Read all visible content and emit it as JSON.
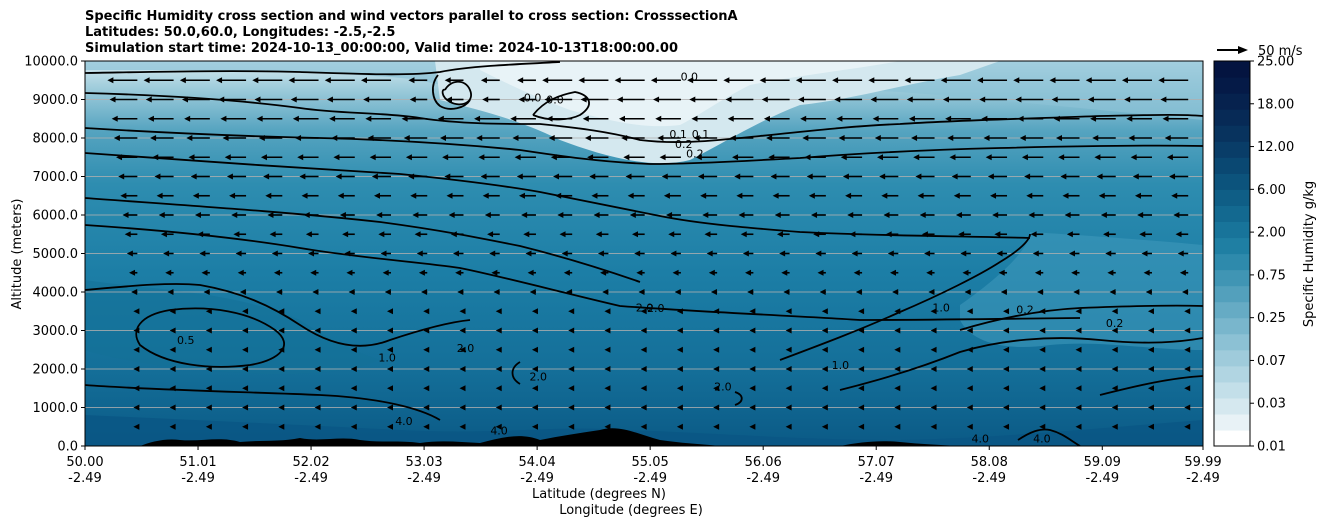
{
  "titles": [
    "Specific Humidity cross section and wind vectors parallel to cross section: CrosssectionA",
    "Latitudes: 50.0,60.0, Longitudes: -2.5,-2.5",
    "Simulation start time: 2024-10-13_00:00:00, Valid time: 2024-10-13T18:00:00.00"
  ],
  "chart_data": {
    "type": "heatmap",
    "title": "Specific Humidity cross section and wind vectors parallel to cross section: CrosssectionA",
    "xlabel_lat": "Latitude (degrees N)",
    "xlabel_lon": "Longitude (degrees E)",
    "ylabel": "Altitude (meters)",
    "x_ticks_lat": [
      "50.00",
      "51.01",
      "52.02",
      "53.03",
      "54.04",
      "55.05",
      "56.06",
      "57.07",
      "58.08",
      "59.09",
      "59.99"
    ],
    "x_ticks_lon": [
      "-2.49",
      "-2.49",
      "-2.49",
      "-2.49",
      "-2.49",
      "-2.49",
      "-2.49",
      "-2.49",
      "-2.49",
      "-2.49",
      "-2.49"
    ],
    "x_tick_values": [
      50.0,
      51.01,
      52.02,
      53.03,
      54.04,
      55.05,
      56.06,
      57.07,
      58.08,
      59.09,
      59.99
    ],
    "xlim": [
      50.0,
      59.99
    ],
    "y_ticks": [
      "0.0",
      "1000.0",
      "2000.0",
      "3000.0",
      "4000.0",
      "5000.0",
      "6000.0",
      "7000.0",
      "8000.0",
      "9000.0",
      "10000.0"
    ],
    "y_tick_values": [
      0,
      1000,
      2000,
      3000,
      4000,
      5000,
      6000,
      7000,
      8000,
      9000,
      10000
    ],
    "ylim": [
      0,
      10000
    ],
    "grid": "horizontal",
    "colorbar": {
      "label": "Specific Humidity g/kg",
      "levels": [
        0.01,
        0.02,
        0.03,
        0.05,
        0.07,
        0.1,
        0.25,
        0.4,
        0.5,
        0.75,
        1.0,
        1.5,
        2.0,
        3.0,
        4.0,
        5.0,
        6.0,
        8.0,
        10.0,
        12.0,
        15.0,
        18.0,
        20.0,
        22.0,
        25.0
      ],
      "tick_labels": [
        "0.01",
        "0.03",
        "0.07",
        "0.25",
        "0.75",
        "2.00",
        "6.00",
        "12.00",
        "18.00",
        "25.00"
      ],
      "colors": [
        "#ffffff",
        "#e8f2f6",
        "#d5e8ef",
        "#c3dfe9",
        "#b1d5e2",
        "#9fcbdb",
        "#8cc1d4",
        "#79b6cc",
        "#66abc4",
        "#53a0bc",
        "#4095b4",
        "#2e8aac",
        "#1f7fa3",
        "#18749a",
        "#136990",
        "#0f5e86",
        "#0c537c",
        "#0a4872",
        "#093d68",
        "#08335e",
        "#072a56",
        "#06224e",
        "#051a47",
        "#041440"
      ]
    },
    "contour_labels": [
      {
        "value": "0.0",
        "lat": 55.4,
        "alt": 9600
      },
      {
        "value": "0.0",
        "lat": 54.0,
        "alt": 9050
      },
      {
        "value": "0.0",
        "lat": 54.2,
        "alt": 9000
      },
      {
        "value": "0.1",
        "lat": 55.3,
        "alt": 8100
      },
      {
        "value": "0.1",
        "lat": 55.5,
        "alt": 8100
      },
      {
        "value": "0.2",
        "lat": 55.35,
        "alt": 7850
      },
      {
        "value": "0.2",
        "lat": 55.45,
        "alt": 7600
      },
      {
        "value": "0.5",
        "lat": 50.9,
        "alt": 2750
      },
      {
        "value": "1.0",
        "lat": 52.7,
        "alt": 2300
      },
      {
        "value": "2.0",
        "lat": 53.4,
        "alt": 2550
      },
      {
        "value": "2.0",
        "lat": 54.05,
        "alt": 1800
      },
      {
        "value": "2.0",
        "lat": 55.0,
        "alt": 3600
      },
      {
        "value": "2.0",
        "lat": 55.1,
        "alt": 3580
      },
      {
        "value": "2.0",
        "lat": 55.7,
        "alt": 1550
      },
      {
        "value": "1.0",
        "lat": 56.75,
        "alt": 2100
      },
      {
        "value": "1.0",
        "lat": 57.65,
        "alt": 3600
      },
      {
        "value": "0.2",
        "lat": 58.4,
        "alt": 3550
      },
      {
        "value": "0.2",
        "lat": 59.2,
        "alt": 3200
      },
      {
        "value": "4.0",
        "lat": 52.85,
        "alt": 650
      },
      {
        "value": "4.0",
        "lat": 53.7,
        "alt": 400
      },
      {
        "value": "4.0",
        "lat": 58.0,
        "alt": 200
      },
      {
        "value": "4.0",
        "lat": 58.55,
        "alt": 200
      }
    ],
    "wind_reference": "50 m/s"
  }
}
